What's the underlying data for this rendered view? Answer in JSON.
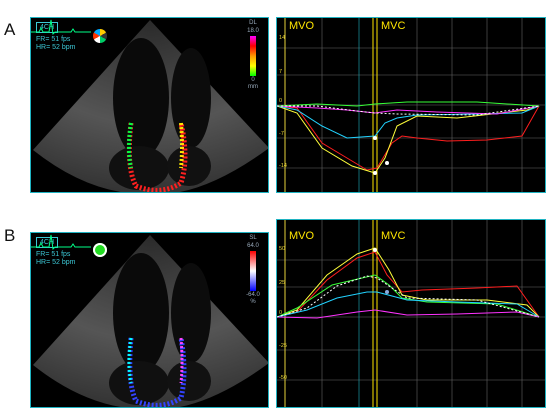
{
  "panels": [
    {
      "letter": "A",
      "view": "4CH",
      "fr": "FR= 51 fps",
      "hr": "HR= 52 bpm",
      "scale_type": "DL",
      "scale_top": "18.0",
      "scale_bottom": "0",
      "scale_unit": "mm",
      "events": [
        "MVO",
        "MVC"
      ],
      "y_ticks": [
        "14",
        "7",
        "0",
        "-7",
        "-14"
      ],
      "colorbar_colors": [
        "#ff00ff",
        "#ff0000",
        "#ff9900",
        "#ffff00",
        "#00ff00"
      ]
    },
    {
      "letter": "B",
      "view": "4CH",
      "fr": "FR= 51 fps",
      "hr": "HR= 52 bpm",
      "scale_type": "SL",
      "scale_top": "64.0",
      "scale_bottom": "-64.0",
      "scale_unit": "%",
      "events": [
        "MVO",
        "MVC"
      ],
      "y_ticks": [
        "50",
        "25",
        "0",
        "-25",
        "-50"
      ],
      "colorbar_colors": [
        "#ff0000",
        "#ffffff",
        "#0000ff"
      ]
    }
  ]
}
